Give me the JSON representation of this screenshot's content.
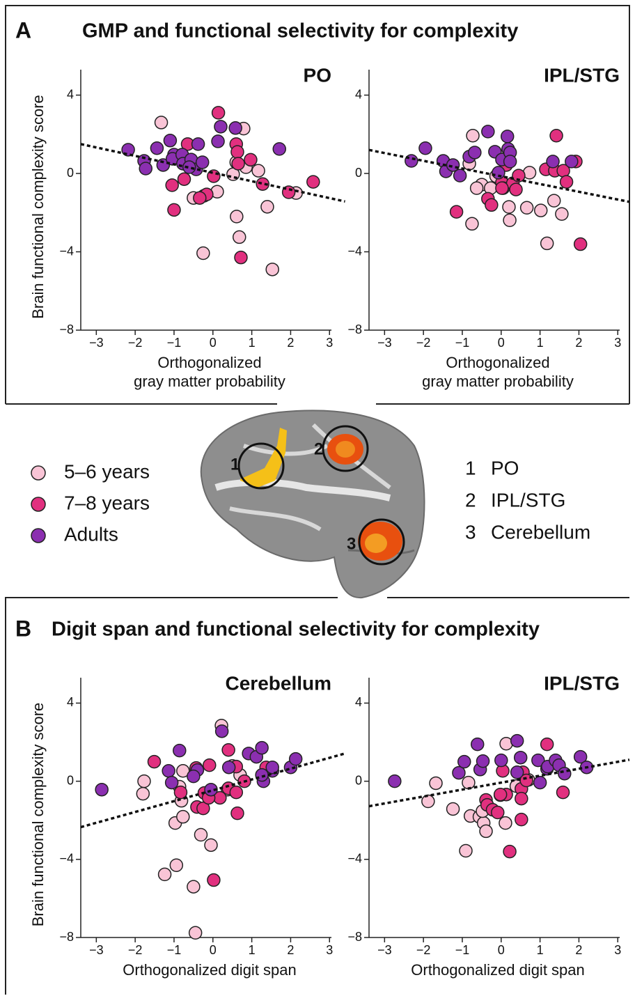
{
  "panels": [
    {
      "letter": "A",
      "title": "GMP and functional selectivity for complexity"
    },
    {
      "letter": "B",
      "title": "Digit span and functional selectivity for complexity"
    }
  ],
  "regions": [
    {
      "number": "1",
      "name": "PO"
    },
    {
      "number": "2",
      "name": "IPL/STG"
    },
    {
      "number": "3",
      "name": "Cerebellum"
    }
  ],
  "chart_data": [
    {
      "type": "scatter",
      "title": "PO",
      "ylabel": "Brain functional complexity score",
      "xlabel": [
        "Orthogonalized",
        "gray matter probability"
      ],
      "xlim": [
        -3.4,
        3.3
      ],
      "ylim": [
        -8,
        5.3
      ],
      "xticks": [
        {
          "value": -3,
          "label": "−3"
        },
        {
          "value": -2,
          "label": "−2"
        },
        {
          "value": -1,
          "label": "−1"
        },
        0,
        1,
        2,
        3
      ],
      "yticks": [
        {
          "value": -8,
          "label": "−8"
        },
        {
          "value": -4,
          "label": "−4"
        },
        0,
        4
      ],
      "trend": {
        "x": [
          -3.4,
          3.4
        ],
        "y": [
          1.5,
          -1.43
        ]
      },
      "series": [
        {
          "name": "5–6 years",
          "color": "#f9c4d6",
          "x": [
            -1.33,
            0.79,
            0.85,
            1.17,
            -0.5,
            -0.23,
            0.11,
            0.61,
            0.68,
            -0.25,
            1.4,
            1.53,
            2.14,
            0.6,
            0.52
          ],
          "y": [
            2.6,
            2.29,
            0.32,
            0.14,
            -1.25,
            -1.14,
            -0.93,
            -2.2,
            -3.25,
            -4.07,
            -1.7,
            -4.9,
            -1.0,
            0.57,
            -0.04
          ]
        },
        {
          "name": "7–8 years",
          "color": "#e1307f",
          "x": [
            0.14,
            0.6,
            0.63,
            0.97,
            -1.05,
            -1.0,
            -0.65,
            -0.16,
            -0.34,
            0.02,
            -0.74,
            0.72,
            1.28,
            1.95,
            2.58,
            0.65
          ],
          "y": [
            3.1,
            1.5,
            1.1,
            0.7,
            -0.6,
            -1.86,
            1.5,
            -1.07,
            -1.25,
            -0.14,
            -0.29,
            -4.29,
            -0.54,
            -0.96,
            -0.43,
            0.5
          ]
        },
        {
          "name": "Adults",
          "color": "#8b2fb0",
          "x": [
            -2.18,
            -1.77,
            -1.73,
            -1.44,
            -1.28,
            -1.1,
            -1.0,
            -1.04,
            -0.79,
            -0.77,
            -0.56,
            -0.38,
            -0.43,
            -0.27,
            0.13,
            0.2,
            0.58,
            1.71,
            -0.61
          ],
          "y": [
            1.21,
            0.64,
            0.25,
            1.29,
            0.43,
            1.68,
            0.96,
            0.75,
            0.96,
            0.5,
            0.71,
            1.5,
            0.21,
            0.57,
            1.64,
            2.39,
            2.32,
            1.25,
            0.32
          ]
        }
      ]
    },
    {
      "type": "scatter",
      "title": "IPL/STG",
      "xlabel": [
        "Orthogonalized",
        "gray matter probability"
      ],
      "xlim": [
        -3.4,
        3.3
      ],
      "ylim": [
        -8,
        5.3
      ],
      "xticks": [
        {
          "value": -3,
          "label": "−3"
        },
        {
          "value": -2,
          "label": "−2"
        },
        {
          "value": -1,
          "label": "−1"
        },
        0,
        1,
        2,
        3
      ],
      "yticks": [
        {
          "value": -8,
          "label": "−8"
        },
        {
          "value": -4,
          "label": "−4"
        },
        0,
        4
      ],
      "trend": {
        "x": [
          -3.4,
          3.3
        ],
        "y": [
          1.2,
          -1.45
        ]
      },
      "series": [
        {
          "color": "#f9c4d6",
          "x": [
            -0.73,
            -0.82,
            -0.5,
            -0.63,
            -0.27,
            -0.75,
            0.2,
            0.22,
            0.66,
            0.73,
            1.02,
            1.36,
            1.56,
            1.18,
            -0.13
          ],
          "y": [
            1.93,
            0.5,
            -0.57,
            -0.75,
            -0.75,
            -2.57,
            -1.71,
            -2.39,
            -1.75,
            0.04,
            -1.89,
            -1.39,
            -2.07,
            -3.57,
            -0.14
          ]
        },
        {
          "color": "#e1307f",
          "x": [
            -1.15,
            -0.34,
            -0.25,
            0.02,
            0.05,
            0.3,
            0.38,
            0.45,
            0.02,
            1.15,
            1.38,
            1.6,
            1.92,
            1.68,
            1.42,
            2.04,
            0.13
          ],
          "y": [
            -1.96,
            -1.29,
            -1.61,
            -0.46,
            -0.75,
            -0.5,
            -0.82,
            -0.11,
            -0.75,
            0.21,
            0.14,
            0.14,
            0.61,
            -0.43,
            1.93,
            -3.61,
            0.43
          ]
        },
        {
          "color": "#8b2fb0",
          "x": [
            -2.31,
            -1.95,
            -1.49,
            -1.42,
            -1.24,
            -1.06,
            -0.82,
            -0.68,
            -0.34,
            -0.16,
            0.02,
            0.16,
            0.18,
            0.23,
            0.23,
            -0.07,
            1.33,
            1.81
          ],
          "y": [
            0.64,
            1.29,
            0.64,
            0.11,
            0.43,
            -0.11,
            0.86,
            1.07,
            2.14,
            1.11,
            0.71,
            1.89,
            1.25,
            1.07,
            0.61,
            0.04,
            0.61,
            0.61
          ]
        }
      ]
    },
    {
      "type": "scatter",
      "title": "Cerebellum",
      "ylabel": "Brain functional complexity score",
      "xlabel": [
        "Orthogonalized digit span"
      ],
      "xlim": [
        -3.4,
        3.3
      ],
      "ylim": [
        -8,
        5.3
      ],
      "xticks": [
        {
          "value": -3,
          "label": "−3"
        },
        {
          "value": -2,
          "label": "−2"
        },
        {
          "value": -1,
          "label": "−1"
        },
        0,
        1,
        2,
        3
      ],
      "yticks": [
        {
          "value": -8,
          "label": "−8"
        },
        {
          "value": -4,
          "label": "−4"
        },
        0,
        4
      ],
      "trend": {
        "x": [
          -3.4,
          3.4
        ],
        "y": [
          -2.35,
          1.42
        ]
      },
      "series": [
        {
          "color": "#f9c4d6",
          "x": [
            -1.77,
            -1.8,
            -1.24,
            -0.94,
            -0.97,
            -0.77,
            -0.81,
            -0.86,
            -0.77,
            -0.5,
            -0.45,
            -0.31,
            -0.05,
            0.22,
            0.7,
            0.38,
            0.5
          ],
          "y": [
            0,
            -0.64,
            -4.77,
            -4.3,
            -2.14,
            -1.82,
            -1.0,
            -0.28,
            0.53,
            -5.4,
            -7.76,
            -2.74,
            -3.27,
            2.85,
            0.32,
            -0.43,
            0.78
          ]
        },
        {
          "color": "#e1307f",
          "x": [
            -1.51,
            -0.83,
            -0.43,
            -0.41,
            -0.25,
            -0.09,
            0.18,
            0.4,
            0.6,
            0.63,
            0.6,
            0.4,
            0.02,
            -0.22,
            -0.11,
            0.81,
            1.37
          ],
          "y": [
            1.0,
            -0.57,
            0.68,
            -1.32,
            -1.39,
            0.82,
            -0.85,
            -0.36,
            -0.57,
            -1.64,
            0.75,
            1.6,
            -5.06,
            -0.6,
            -0.85,
            0,
            0.71
          ]
        },
        {
          "color": "#8b2fb0",
          "x": [
            -2.86,
            -1.14,
            -0.86,
            -1.06,
            -0.4,
            -0.5,
            -0.05,
            0.23,
            0.41,
            0.92,
            1.12,
            1.26,
            1.3,
            1.53,
            1.53,
            2.0,
            2.13,
            1.26
          ],
          "y": [
            -0.43,
            0.53,
            1.57,
            -0.07,
            0.57,
            0.25,
            -0.43,
            2.56,
            0.71,
            1.42,
            1.25,
            1.71,
            0,
            0.53,
            0.71,
            0.71,
            1.14,
            0.32
          ]
        }
      ]
    },
    {
      "type": "scatter",
      "title": "IPL/STG",
      "xlabel": [
        "Orthogonalized digit span"
      ],
      "xlim": [
        -3.4,
        3.3
      ],
      "ylim": [
        -8,
        5.3
      ],
      "xticks": [
        {
          "value": -3,
          "label": "−3"
        },
        {
          "value": -2,
          "label": "−2"
        },
        {
          "value": -1,
          "label": "−1"
        },
        0,
        1,
        2,
        3
      ],
      "yticks": [
        {
          "value": -8,
          "label": "−8"
        },
        {
          "value": -4,
          "label": "−4"
        },
        0,
        4
      ],
      "trend": {
        "x": [
          -3.4,
          3.3
        ],
        "y": [
          -1.28,
          1.1
        ]
      },
      "series": [
        {
          "color": "#f9c4d6",
          "x": [
            -1.88,
            -1.68,
            -1.24,
            -0.91,
            -0.79,
            -0.56,
            -0.45,
            -0.39,
            -0.48,
            -0.02,
            0.13,
            0.11,
            0.39,
            0.7,
            -0.84
          ],
          "y": [
            -1.03,
            -0.1,
            -1.42,
            -3.56,
            -1.78,
            -1.82,
            -2.14,
            -2.56,
            -1.53,
            -0.71,
            1.92,
            -2.14,
            -0.25,
            0.07,
            -0.07
          ]
        },
        {
          "color": "#e1307f",
          "x": [
            -0.39,
            -0.36,
            -0.22,
            -0.09,
            0.04,
            0.13,
            0.22,
            0.52,
            0.52,
            0.52,
            0.56,
            0.65,
            1.18,
            1.59,
            -0.02
          ],
          "y": [
            -0.96,
            -1.21,
            -1.46,
            -1.6,
            0.53,
            -0.68,
            -3.6,
            -0.39,
            -0.89,
            -1.96,
            0.46,
            0.04,
            1.89,
            -0.57,
            -0.68
          ]
        },
        {
          "color": "#8b2fb0",
          "x": [
            -2.74,
            -1.09,
            -0.95,
            -0.61,
            -0.54,
            -0.47,
            0,
            0.41,
            0.41,
            0.5,
            0.95,
            1.0,
            1.18,
            1.2,
            1.4,
            1.49,
            1.63,
            2.04,
            2.2
          ],
          "y": [
            0,
            0.43,
            1.0,
            1.89,
            0.6,
            1.03,
            1.07,
            2.07,
            0.46,
            1.21,
            1.07,
            -0.07,
            0.64,
            0.75,
            1.07,
            0.82,
            0.39,
            1.25,
            0.71
          ]
        }
      ]
    }
  ]
}
